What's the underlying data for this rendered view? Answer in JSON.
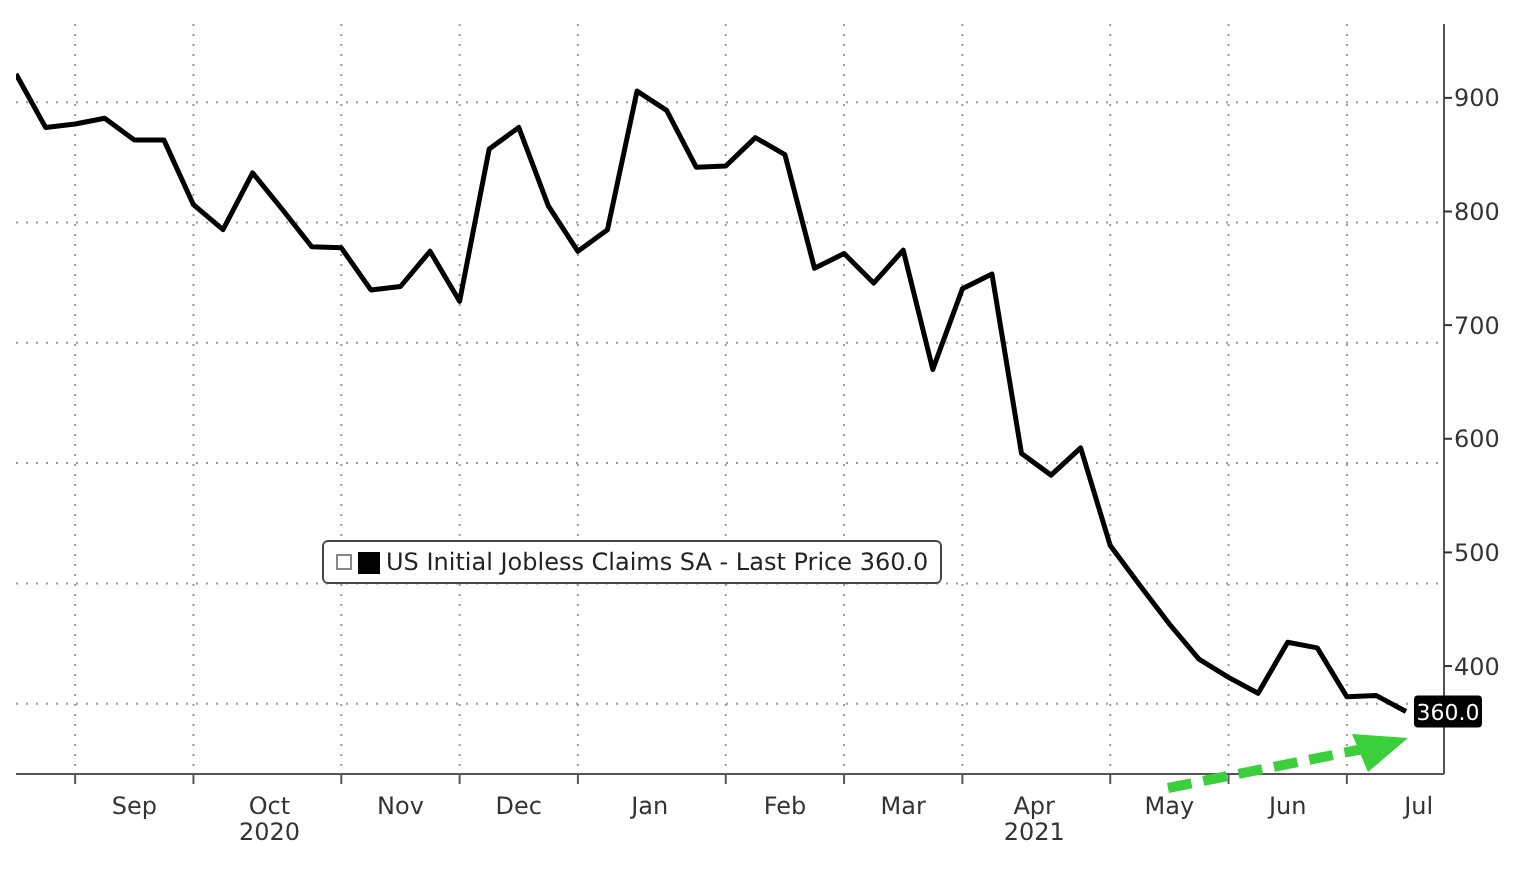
{
  "chart_data": {
    "type": "line",
    "x": [
      "2020-08-21",
      "2020-08-28",
      "2020-09-04",
      "2020-09-11",
      "2020-09-18",
      "2020-09-25",
      "2020-10-02",
      "2020-10-09",
      "2020-10-16",
      "2020-10-23",
      "2020-10-30",
      "2020-11-06",
      "2020-11-13",
      "2020-11-20",
      "2020-11-27",
      "2020-12-04",
      "2020-12-11",
      "2020-12-18",
      "2020-12-25",
      "2021-01-01",
      "2021-01-08",
      "2021-01-15",
      "2021-01-22",
      "2021-01-29",
      "2021-02-05",
      "2021-02-12",
      "2021-02-19",
      "2021-02-26",
      "2021-03-05",
      "2021-03-12",
      "2021-03-19",
      "2021-03-26",
      "2021-04-02",
      "2021-04-09",
      "2021-04-16",
      "2021-04-23",
      "2021-04-30",
      "2021-05-07",
      "2021-05-14",
      "2021-05-21",
      "2021-05-28",
      "2021-06-04",
      "2021-06-11",
      "2021-06-18",
      "2021-06-25",
      "2021-07-02",
      "2021-07-09",
      "2021-07-16"
    ],
    "series": [
      {
        "name": "US Initial Jobless Claims SA - Last Price 360.0",
        "color": "#000000",
        "values": [
          921,
          874,
          877,
          882,
          863,
          863,
          806,
          784,
          834,
          802,
          769,
          768,
          731,
          734,
          765,
          721,
          855,
          874,
          805,
          765,
          784,
          906,
          889,
          839,
          840,
          865,
          850,
          750,
          763,
          737,
          766,
          661,
          732,
          745,
          587,
          568,
          592,
          506,
          471,
          437,
          406,
          390,
          376,
          421,
          416,
          373,
          374,
          360
        ],
        "value_labels": [
          null,
          null,
          null,
          null,
          null,
          null,
          null,
          null,
          null,
          null,
          null,
          null,
          null,
          null,
          null,
          null,
          null,
          null,
          null,
          null,
          null,
          null,
          null,
          null,
          null,
          null,
          null,
          null,
          null,
          null,
          null,
          null,
          null,
          null,
          null,
          null,
          null,
          null,
          null,
          null,
          null,
          null,
          null,
          null,
          null,
          null,
          null,
          "360.0"
        ]
      }
    ],
    "xlim": [
      "2020-08-21",
      "2021-07-25"
    ],
    "xticks": [
      {
        "value": "2020-09-04",
        "label": null
      },
      {
        "value": "2020-09-18",
        "label": "Sep"
      },
      {
        "value": "2020-10-02",
        "label": null
      },
      {
        "value": "2020-10-20",
        "label": "Oct\n2020"
      },
      {
        "value": "2020-11-06",
        "label": null
      },
      {
        "value": "2020-11-20",
        "label": "Nov"
      },
      {
        "value": "2020-12-04",
        "label": null
      },
      {
        "value": "2020-12-18",
        "label": "Dec"
      },
      {
        "value": "2021-01-01",
        "label": null
      },
      {
        "value": "2021-01-18",
        "label": "Jan"
      },
      {
        "value": "2021-02-05",
        "label": null
      },
      {
        "value": "2021-02-19",
        "label": "Feb"
      },
      {
        "value": "2021-03-05",
        "label": null
      },
      {
        "value": "2021-03-19",
        "label": "Mar"
      },
      {
        "value": "2021-04-02",
        "label": null
      },
      {
        "value": "2021-04-19",
        "label": "Apr\n2021"
      },
      {
        "value": "2021-05-07",
        "label": null
      },
      {
        "value": "2021-05-21",
        "label": "May"
      },
      {
        "value": "2021-06-04",
        "label": null
      },
      {
        "value": "2021-06-18",
        "label": "Jun"
      },
      {
        "value": "2021-07-02",
        "label": null
      },
      {
        "value": "2021-07-19",
        "label": "Jul"
      }
    ],
    "ylim": [
      305,
      965
    ],
    "yticks": [
      400,
      500,
      600,
      700,
      800,
      900
    ],
    "grid": true,
    "legend": "left",
    "marker": "none",
    "line_style": "solid"
  }
}
